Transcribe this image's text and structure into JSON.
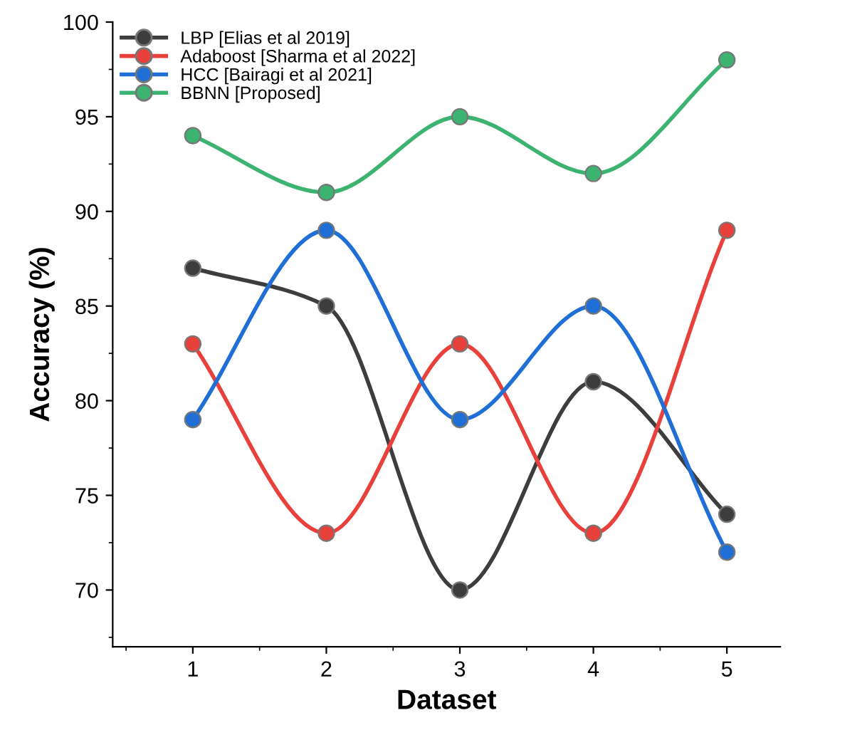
{
  "chart_data": {
    "type": "line",
    "xlabel": "Dataset",
    "ylabel": "Accuracy (%)",
    "x": [
      1,
      2,
      3,
      4,
      5
    ],
    "series": [
      {
        "name": "LBP [Elias et al 2019]",
        "color": "#3d3d3d",
        "values": [
          87,
          85,
          70,
          81,
          74
        ]
      },
      {
        "name": "Adaboost [Sharma et al 2022]",
        "color": "#e8413c",
        "values": [
          83,
          73,
          83,
          73,
          89
        ]
      },
      {
        "name": "HCC [Bairagi et al 2021]",
        "color": "#1f6fd6",
        "values": [
          79,
          89,
          79,
          85,
          72
        ]
      },
      {
        "name": "BBNN [Proposed]",
        "color": "#3cb371",
        "values": [
          94,
          91,
          95,
          92,
          98
        ]
      }
    ],
    "xlim": [
      0.4,
      5.4
    ],
    "xticks": [
      1,
      2,
      3,
      4,
      5
    ],
    "ylim": [
      67,
      100
    ],
    "yticks": [
      70,
      75,
      80,
      85,
      90,
      95,
      100
    ],
    "marker": "circle",
    "line_style": "solid",
    "legend": "top left",
    "grid": false
  }
}
